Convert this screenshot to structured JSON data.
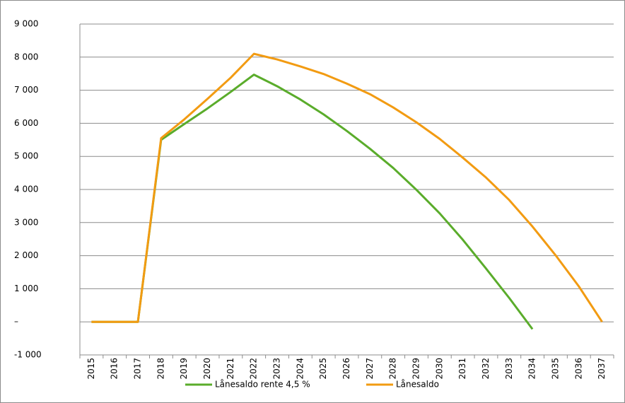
{
  "chart_data": {
    "type": "line",
    "categories": [
      "2015",
      "2016",
      "2017",
      "2018",
      "2019",
      "2020",
      "2021",
      "2022",
      "2023",
      "2024",
      "2025",
      "2026",
      "2027",
      "2028",
      "2029",
      "2030",
      "2031",
      "2032",
      "2033",
      "2034",
      "2035",
      "2036",
      "2037"
    ],
    "series": [
      {
        "name": "Lånesaldo rente 4,5 %",
        "color": "#5aac2b",
        "values": [
          0,
          0,
          0,
          5500,
          5980,
          6450,
          6950,
          7470,
          7120,
          6720,
          6270,
          5770,
          5230,
          4650,
          3990,
          3280,
          2480,
          1610,
          720,
          -220,
          null,
          null,
          null
        ]
      },
      {
        "name": "Lånesaldo",
        "color": "#f29b12",
        "values": [
          0,
          0,
          0,
          5550,
          6120,
          6740,
          7380,
          8100,
          7930,
          7720,
          7490,
          7200,
          6880,
          6480,
          6030,
          5530,
          4960,
          4360,
          3680,
          2880,
          2010,
          1070,
          0
        ]
      }
    ],
    "ylim": [
      -1000,
      9000
    ],
    "yticks": [
      {
        "value": -1000,
        "label": "-1 000"
      },
      {
        "value": 0,
        "label": "–"
      },
      {
        "value": 1000,
        "label": "1 000"
      },
      {
        "value": 2000,
        "label": "2 000"
      },
      {
        "value": 3000,
        "label": "3 000"
      },
      {
        "value": 4000,
        "label": "4 000"
      },
      {
        "value": 5000,
        "label": "5 000"
      },
      {
        "value": 6000,
        "label": "6 000"
      },
      {
        "value": 7000,
        "label": "7 000"
      },
      {
        "value": 8000,
        "label": "8 000"
      },
      {
        "value": 9000,
        "label": "9 000"
      }
    ],
    "grid": true,
    "legend": "bottom"
  }
}
